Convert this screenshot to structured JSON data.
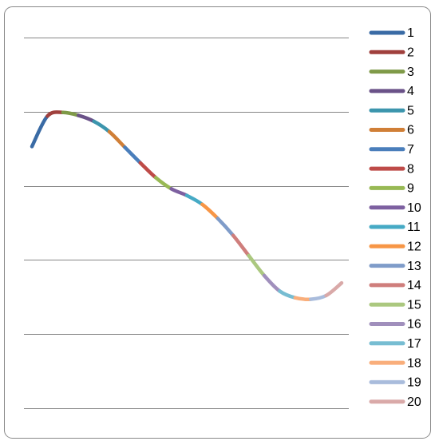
{
  "chart_data": {
    "type": "line",
    "grid": true,
    "xlim": [
      0,
      20
    ],
    "ylim": [
      0,
      5
    ],
    "yticks": [
      0,
      1,
      2,
      3,
      4,
      5
    ],
    "legend": "right",
    "series": [
      {
        "name": "1",
        "color": "#3A6BA5",
        "x": [
          0,
          1
        ],
        "values": [
          3.53,
          3.94
        ]
      },
      {
        "name": "2",
        "color": "#A0403D",
        "x": [
          1,
          2
        ],
        "values": [
          3.94,
          3.99
        ]
      },
      {
        "name": "3",
        "color": "#7F9A48",
        "x": [
          2,
          3
        ],
        "values": [
          3.99,
          3.95
        ]
      },
      {
        "name": "4",
        "color": "#6A5288",
        "x": [
          3,
          4
        ],
        "values": [
          3.95,
          3.87
        ]
      },
      {
        "name": "5",
        "color": "#3C95AD",
        "x": [
          4,
          5
        ],
        "values": [
          3.87,
          3.73
        ]
      },
      {
        "name": "6",
        "color": "#D07F37",
        "x": [
          5,
          6
        ],
        "values": [
          3.73,
          3.52
        ]
      },
      {
        "name": "7",
        "color": "#4A7EBB",
        "x": [
          6,
          7
        ],
        "values": [
          3.52,
          3.31
        ]
      },
      {
        "name": "8",
        "color": "#BE4B48",
        "x": [
          7,
          8
        ],
        "values": [
          3.31,
          3.11
        ]
      },
      {
        "name": "9",
        "color": "#98B954",
        "x": [
          8,
          9
        ],
        "values": [
          3.11,
          2.96
        ]
      },
      {
        "name": "10",
        "color": "#7D60A0",
        "x": [
          9,
          10
        ],
        "values": [
          2.96,
          2.87
        ]
      },
      {
        "name": "11",
        "color": "#46AAC5",
        "x": [
          10,
          11
        ],
        "values": [
          2.87,
          2.75
        ]
      },
      {
        "name": "12",
        "color": "#F79646",
        "x": [
          11,
          12
        ],
        "values": [
          2.75,
          2.56
        ]
      },
      {
        "name": "13",
        "color": "#7F9CC9",
        "x": [
          12,
          13
        ],
        "values": [
          2.56,
          2.33
        ]
      },
      {
        "name": "14",
        "color": "#CF7E7C",
        "x": [
          13,
          14
        ],
        "values": [
          2.33,
          2.06
        ]
      },
      {
        "name": "15",
        "color": "#ABC87F",
        "x": [
          14,
          15
        ],
        "values": [
          2.06,
          1.79
        ]
      },
      {
        "name": "16",
        "color": "#A08FBC",
        "x": [
          15,
          16
        ],
        "values": [
          1.79,
          1.58
        ]
      },
      {
        "name": "17",
        "color": "#77BDD2",
        "x": [
          16,
          17
        ],
        "values": [
          1.58,
          1.49
        ]
      },
      {
        "name": "18",
        "color": "#F9AE7B",
        "x": [
          17,
          18
        ],
        "values": [
          1.49,
          1.47
        ]
      },
      {
        "name": "19",
        "color": "#A9BCDC",
        "x": [
          18,
          19
        ],
        "values": [
          1.47,
          1.52
        ]
      },
      {
        "name": "20",
        "color": "#D9A9A8",
        "x": [
          19,
          20
        ],
        "values": [
          1.52,
          1.69
        ]
      }
    ]
  }
}
